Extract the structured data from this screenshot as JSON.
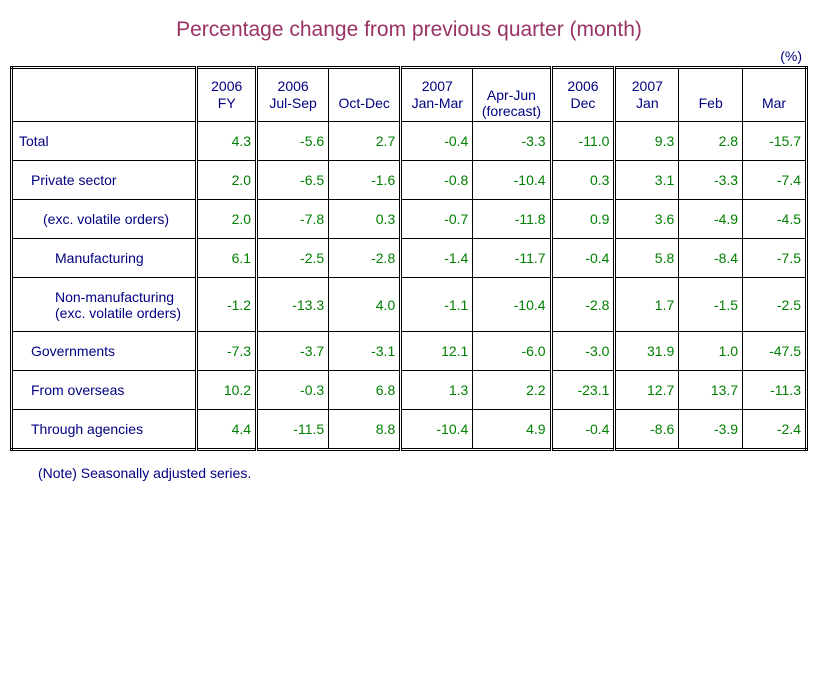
{
  "title": "Percentage change from previous quarter (month)",
  "unit_label": "(%)",
  "note": "(Note) Seasonally adjusted series.",
  "colors": {
    "title": "#993366",
    "header_text": "#000080",
    "label_text": "#000080",
    "value_text": "#008000",
    "border": "#000000",
    "background": "#ffffff"
  },
  "header": {
    "c1_l1": "2006",
    "c1_l2": "FY",
    "c2_l1": "2006",
    "c2_l2": "Jul-Sep",
    "c3": "Oct-Dec",
    "c4_l1": "2007",
    "c4_l2": "Jan-Mar",
    "c5_l1": "Apr-Jun",
    "c5_l2": "(forecast)",
    "c6_l1": "2006",
    "c6_l2": "Dec",
    "c7_l1": "2007",
    "c7_l2": "Jan",
    "c8": "Feb",
    "c9": "Mar"
  },
  "rows": [
    {
      "label": "Total",
      "indent": 0,
      "v": [
        "4.3",
        "-5.6",
        "2.7",
        "-0.4",
        "-3.3",
        "-11.0",
        "9.3",
        "2.8",
        "-15.7"
      ]
    },
    {
      "label": "Private sector",
      "indent": 1,
      "v": [
        "2.0",
        "-6.5",
        "-1.6",
        "-0.8",
        "-10.4",
        "0.3",
        "3.1",
        "-3.3",
        "-7.4"
      ]
    },
    {
      "label": "(exc. volatile orders)",
      "indent": 2,
      "v": [
        "2.0",
        "-7.8",
        "0.3",
        "-0.7",
        "-11.8",
        "0.9",
        "3.6",
        "-4.9",
        "-4.5"
      ]
    },
    {
      "label": "Manufacturing",
      "indent": 3,
      "v": [
        "6.1",
        "-2.5",
        "-2.8",
        "-1.4",
        "-11.7",
        "-0.4",
        "5.8",
        "-8.4",
        "-7.5"
      ]
    },
    {
      "label": "Non-manufacturing (exc. volatile orders)",
      "indent": 3,
      "tall": true,
      "v": [
        "-1.2",
        "-13.3",
        "4.0",
        "-1.1",
        "-10.4",
        "-2.8",
        "1.7",
        "-1.5",
        "-2.5"
      ]
    },
    {
      "label": "Governments",
      "indent": 1,
      "v": [
        "-7.3",
        "-3.7",
        "-3.1",
        "12.1",
        "-6.0",
        "-3.0",
        "31.9",
        "1.0",
        "-47.5"
      ]
    },
    {
      "label": "From overseas",
      "indent": 1,
      "v": [
        "10.2",
        "-0.3",
        "6.8",
        "1.3",
        "2.2",
        "-23.1",
        "12.7",
        "13.7",
        "-11.3"
      ]
    },
    {
      "label": "Through agencies",
      "indent": 1,
      "v": [
        "4.4",
        "-11.5",
        "8.8",
        "-10.4",
        "4.9",
        "-0.4",
        "-8.6",
        "-3.9",
        "-2.4"
      ]
    }
  ]
}
